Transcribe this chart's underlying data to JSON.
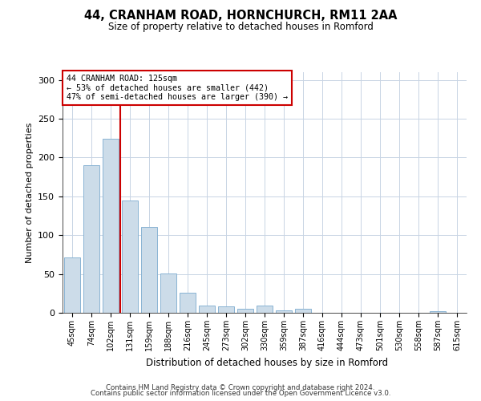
{
  "title": "44, CRANHAM ROAD, HORNCHURCH, RM11 2AA",
  "subtitle": "Size of property relative to detached houses in Romford",
  "xlabel": "Distribution of detached houses by size in Romford",
  "ylabel": "Number of detached properties",
  "bar_color": "#ccdce9",
  "bar_edge_color": "#8ab4d4",
  "background_color": "#ffffff",
  "grid_color": "#c8d4e4",
  "annotation_box_color": "#cc0000",
  "annotation_text": "44 CRANHAM ROAD: 125sqm\n← 53% of detached houses are smaller (442)\n47% of semi-detached houses are larger (390) →",
  "vline_color": "#cc0000",
  "vline_x_index": 2,
  "categories": [
    "45sqm",
    "74sqm",
    "102sqm",
    "131sqm",
    "159sqm",
    "188sqm",
    "216sqm",
    "245sqm",
    "273sqm",
    "302sqm",
    "330sqm",
    "359sqm",
    "387sqm",
    "416sqm",
    "444sqm",
    "473sqm",
    "501sqm",
    "530sqm",
    "558sqm",
    "587sqm",
    "615sqm"
  ],
  "values": [
    71,
    190,
    224,
    145,
    111,
    51,
    26,
    9,
    8,
    5,
    9,
    3,
    5,
    0,
    0,
    0,
    0,
    0,
    0,
    2,
    0
  ],
  "ylim": [
    0,
    310
  ],
  "yticks": [
    0,
    50,
    100,
    150,
    200,
    250,
    300
  ],
  "footnote_line1": "Contains HM Land Registry data © Crown copyright and database right 2024.",
  "footnote_line2": "Contains public sector information licensed under the Open Government Licence v3.0."
}
